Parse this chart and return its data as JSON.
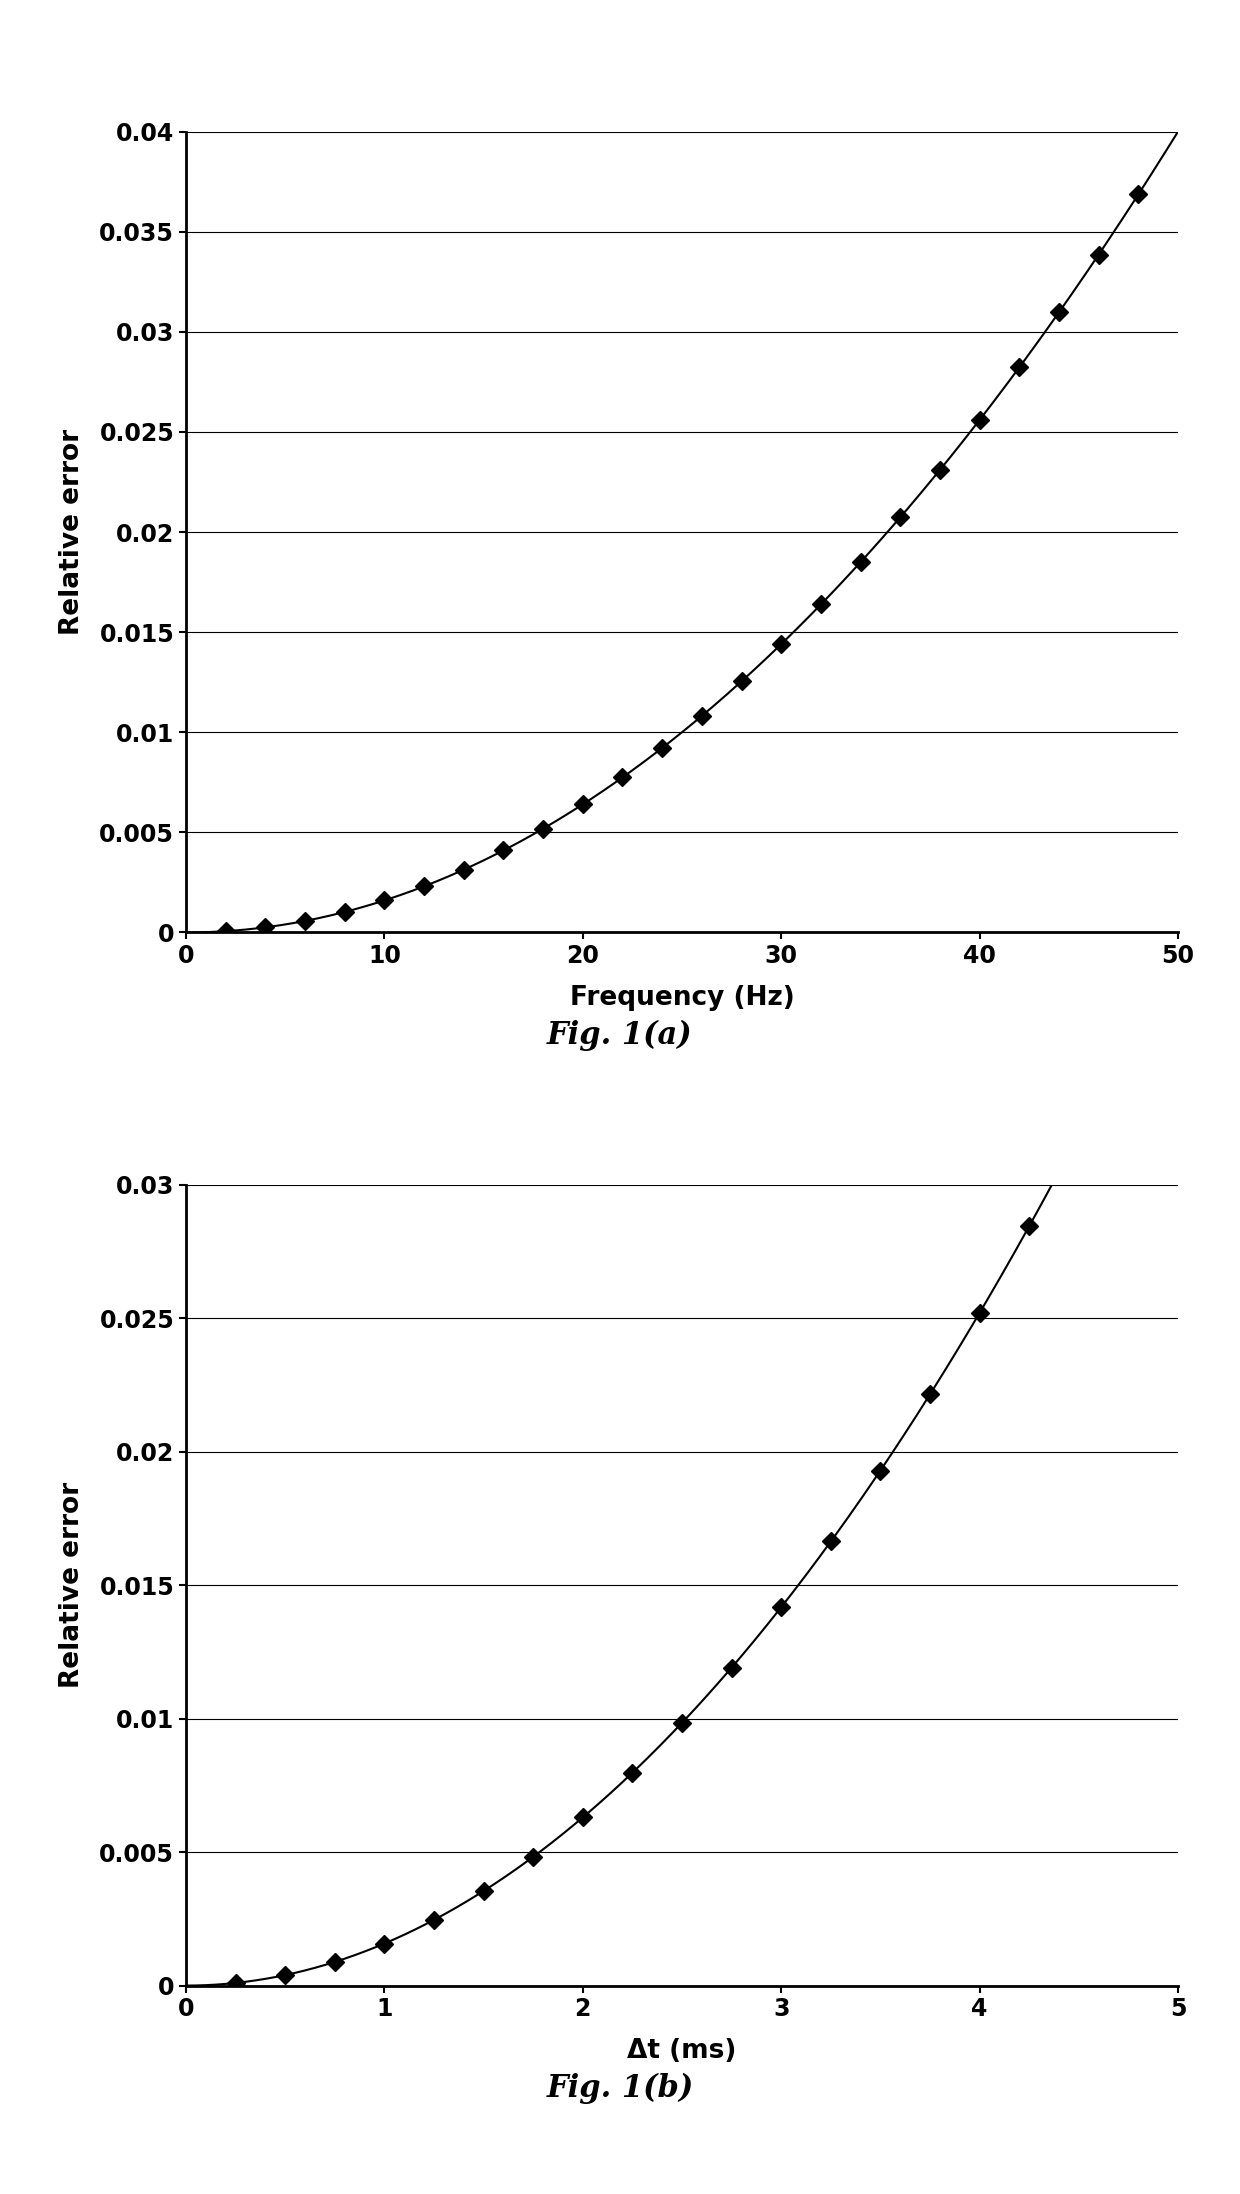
{
  "fig_a": {
    "title": "Fig. 1(a)",
    "xlabel": "Frequency (Hz)",
    "ylabel": "Relative error",
    "xlim": [
      0,
      50
    ],
    "ylim": [
      0,
      0.04
    ],
    "xticks": [
      0,
      10,
      20,
      30,
      40,
      50
    ],
    "yticks": [
      0,
      0.005,
      0.01,
      0.015,
      0.02,
      0.025,
      0.03,
      0.035,
      0.04
    ],
    "x": [
      2,
      4,
      6,
      8,
      10,
      12,
      14,
      16,
      18,
      20,
      22,
      24,
      26,
      28,
      30,
      32,
      34,
      36,
      38,
      40,
      42,
      44,
      46,
      48
    ],
    "coeff": 1.6e-05
  },
  "fig_b": {
    "title": "Fig. 1(b)",
    "xlabel": "Δt (ms)",
    "ylabel": "Relative error",
    "xlim": [
      0,
      5
    ],
    "ylim": [
      0,
      0.03
    ],
    "xticks": [
      0,
      1,
      2,
      3,
      4,
      5
    ],
    "yticks": [
      0,
      0.005,
      0.01,
      0.015,
      0.02,
      0.025,
      0.03
    ],
    "x": [
      0.25,
      0.5,
      0.75,
      1.0,
      1.25,
      1.5,
      1.75,
      2.0,
      2.25,
      2.5,
      2.75,
      3.0,
      3.25,
      3.5,
      3.75,
      4.0,
      4.25
    ],
    "coeff": 0.001575
  },
  "background_color": "#ffffff",
  "line_color": "#000000",
  "marker_color": "#000000",
  "title_fontsize": 22,
  "label_fontsize": 19,
  "tick_fontsize": 17
}
